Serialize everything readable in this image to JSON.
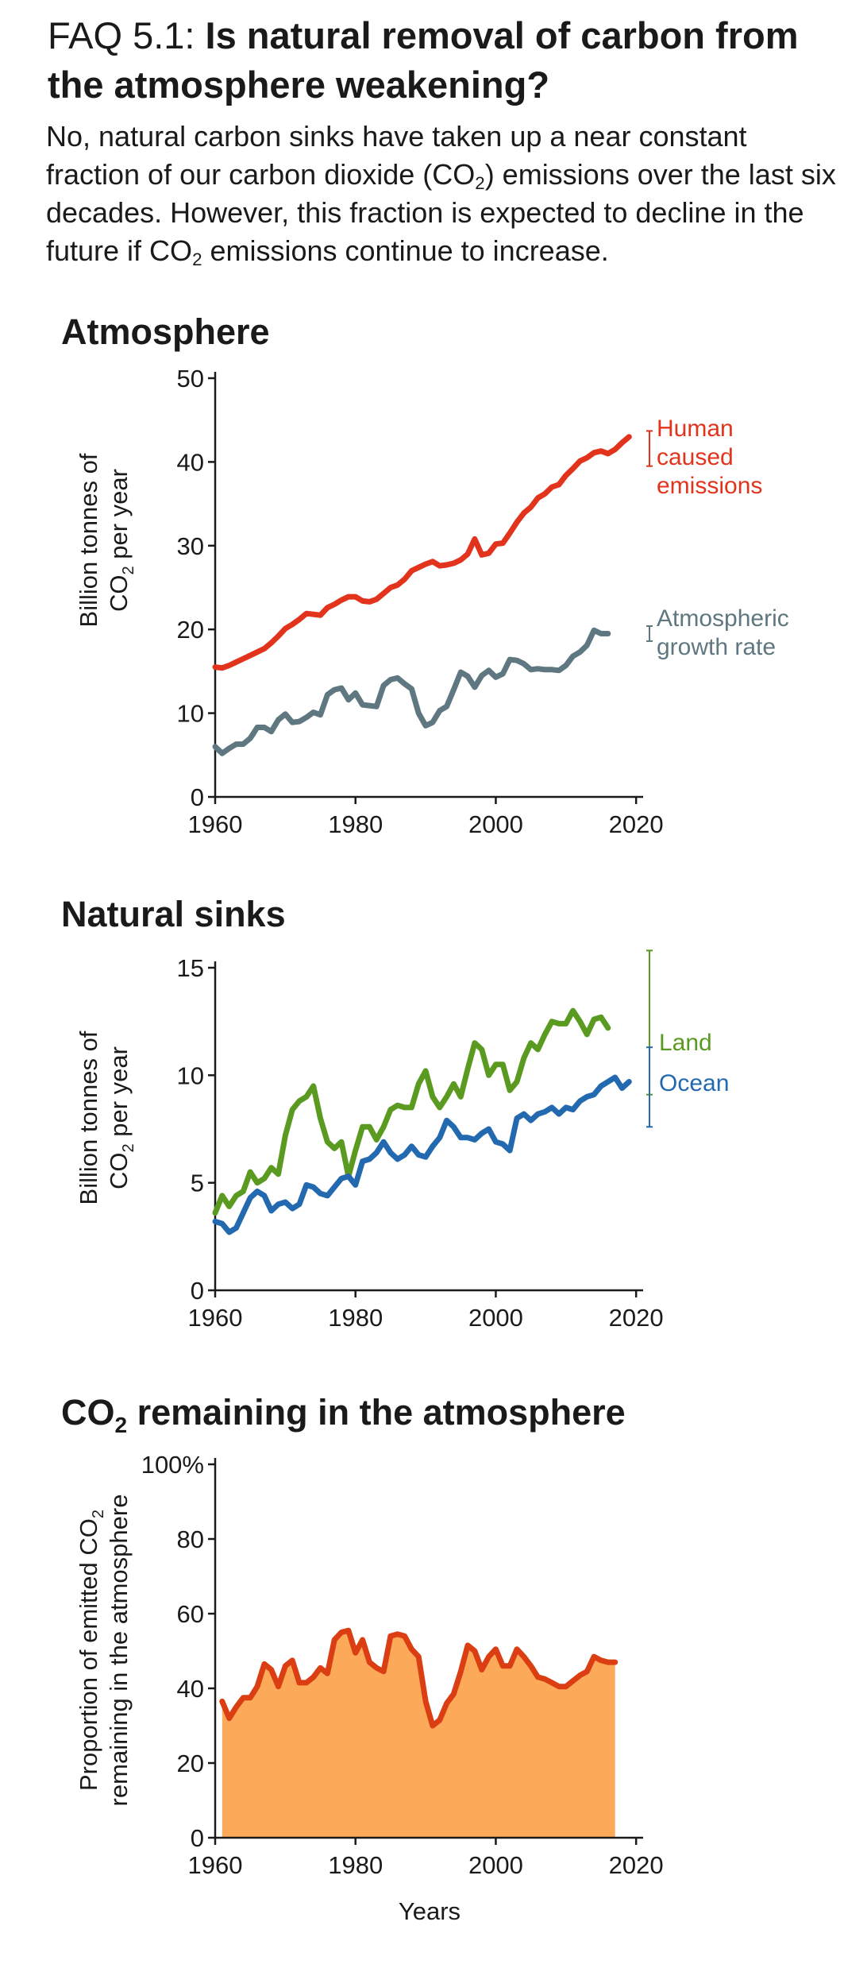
{
  "header": {
    "faq_label": "FAQ 5.1:",
    "question": "Is natural removal of carbon from the atmosphere weakening?",
    "intro": {
      "p1": "No, natural carbon sinks have taken up a near constant fraction of our carbon dioxide (CO",
      "sub1": "2",
      "p2": ") emissions over the last six decades. However, this fraction is expected to decline in the future if CO",
      "sub2": "2",
      "p3": " emissions continue to increase."
    }
  },
  "colors": {
    "human": "#e2341d",
    "atmospheric": "#5f7780",
    "land": "#5b9a21",
    "ocean": "#2369b0",
    "remaining_line": "#da3e12",
    "remaining_fill": "#fcaa59",
    "axis": "#1a1a1a"
  },
  "chart_data": [
    {
      "type": "line",
      "panel_title": "Atmosphere",
      "ylabel_line1": "Billion tonnes of",
      "ylabel_line2_pre": "CO",
      "ylabel_line2_sub": "2",
      "ylabel_line2_post": " per year",
      "xlim": [
        1960,
        2021
      ],
      "ylim": [
        0,
        50
      ],
      "xticks": [
        1960,
        1980,
        2000,
        2020
      ],
      "yticks": [
        0,
        10,
        20,
        30,
        40,
        50
      ],
      "series": [
        {
          "key": "human",
          "name_lines": [
            "Human",
            "caused",
            "emissions"
          ],
          "color": "#e2341d",
          "x": [
            1960,
            1961,
            1962,
            1963,
            1964,
            1965,
            1966,
            1967,
            1968,
            1969,
            1970,
            1971,
            1972,
            1973,
            1974,
            1975,
            1976,
            1977,
            1978,
            1979,
            1980,
            1981,
            1982,
            1983,
            1984,
            1985,
            1986,
            1987,
            1988,
            1989,
            1990,
            1991,
            1992,
            1993,
            1994,
            1995,
            1996,
            1997,
            1998,
            1999,
            2000,
            2001,
            2002,
            2003,
            2004,
            2005,
            2006,
            2007,
            2008,
            2009,
            2010,
            2011,
            2012,
            2013,
            2014,
            2015,
            2016,
            2017,
            2018,
            2019
          ],
          "values": [
            15.5,
            15.4,
            15.7,
            16.1,
            16.5,
            16.9,
            17.3,
            17.7,
            18.4,
            19.2,
            20.1,
            20.6,
            21.2,
            21.9,
            21.8,
            21.7,
            22.6,
            23.0,
            23.5,
            23.9,
            23.9,
            23.4,
            23.3,
            23.6,
            24.3,
            25.0,
            25.3,
            26.0,
            27.0,
            27.4,
            27.8,
            28.1,
            27.6,
            27.7,
            27.9,
            28.3,
            29.0,
            30.8,
            28.9,
            29.1,
            30.2,
            30.3,
            31.5,
            32.8,
            33.9,
            34.6,
            35.7,
            36.2,
            37.0,
            37.3,
            38.4,
            39.2,
            40.1,
            40.5,
            41.1,
            41.3,
            41.0,
            41.5,
            42.3,
            43.0
          ],
          "uncertainty": [
            39.5,
            43.7
          ]
        },
        {
          "key": "atmospheric",
          "name_lines": [
            "Atmospheric",
            "growth rate"
          ],
          "color": "#5f7780",
          "x": [
            1960,
            1961,
            1962,
            1963,
            1964,
            1965,
            1966,
            1967,
            1968,
            1969,
            1970,
            1971,
            1972,
            1973,
            1974,
            1975,
            1976,
            1977,
            1978,
            1979,
            1980,
            1981,
            1982,
            1983,
            1984,
            1985,
            1986,
            1987,
            1988,
            1989,
            1990,
            1991,
            1992,
            1993,
            1994,
            1995,
            1996,
            1997,
            1998,
            1999,
            2000,
            2001,
            2002,
            2003,
            2004,
            2005,
            2006,
            2007,
            2008,
            2009,
            2010,
            2011,
            2012,
            2013,
            2014,
            2015,
            2016
          ],
          "values": [
            6.0,
            5.2,
            5.8,
            6.3,
            6.3,
            7.0,
            8.3,
            8.3,
            7.8,
            9.2,
            9.9,
            8.9,
            9.0,
            9.5,
            10.1,
            9.8,
            12.2,
            12.8,
            13.0,
            11.6,
            12.4,
            11.0,
            10.9,
            10.8,
            13.3,
            14.0,
            14.2,
            13.5,
            12.9,
            10.0,
            8.5,
            8.9,
            10.3,
            10.8,
            12.8,
            14.9,
            14.4,
            13.1,
            14.5,
            15.1,
            14.3,
            14.7,
            16.4,
            16.3,
            15.9,
            15.2,
            15.3,
            15.2,
            15.2,
            15.1,
            15.7,
            16.8,
            17.3,
            18.1,
            19.9,
            19.5,
            19.5
          ],
          "uncertainty": [
            18.6,
            20.4
          ]
        }
      ]
    },
    {
      "type": "line",
      "panel_title": "Natural sinks",
      "ylabel_line1": "Billion tonnes of",
      "ylabel_line2_pre": "CO",
      "ylabel_line2_sub": "2",
      "ylabel_line2_post": " per year",
      "xlim": [
        1960,
        2021
      ],
      "ylim": [
        0,
        15
      ],
      "xticks": [
        1960,
        1980,
        2000,
        2020
      ],
      "yticks": [
        0,
        5,
        10,
        15
      ],
      "series": [
        {
          "key": "land",
          "name": "Land",
          "color": "#5b9a21",
          "x": [
            1960,
            1961,
            1962,
            1963,
            1964,
            1965,
            1966,
            1967,
            1968,
            1969,
            1970,
            1971,
            1972,
            1973,
            1974,
            1975,
            1976,
            1977,
            1978,
            1979,
            1980,
            1981,
            1982,
            1983,
            1984,
            1985,
            1986,
            1987,
            1988,
            1989,
            1990,
            1991,
            1992,
            1993,
            1994,
            1995,
            1996,
            1997,
            1998,
            1999,
            2000,
            2001,
            2002,
            2003,
            2004,
            2005,
            2006,
            2007,
            2008,
            2009,
            2010,
            2011,
            2012,
            2013,
            2014,
            2015,
            2016
          ],
          "values": [
            3.6,
            4.4,
            3.9,
            4.4,
            4.6,
            5.5,
            5.0,
            5.2,
            5.7,
            5.4,
            7.2,
            8.4,
            8.8,
            9.0,
            9.5,
            8.0,
            6.9,
            6.6,
            6.9,
            5.3,
            6.5,
            7.6,
            7.6,
            7.0,
            7.6,
            8.4,
            8.6,
            8.5,
            8.5,
            9.6,
            10.2,
            9.0,
            8.5,
            9.0,
            9.6,
            9.0,
            10.3,
            11.5,
            11.2,
            10.0,
            10.5,
            10.5,
            9.3,
            9.7,
            10.8,
            11.5,
            11.2,
            11.9,
            12.5,
            12.4,
            12.4,
            13.0,
            12.5,
            11.9,
            12.6,
            12.7,
            12.2
          ],
          "uncertainty": [
            9.1,
            15.8
          ]
        },
        {
          "key": "ocean",
          "name": "Ocean",
          "color": "#2369b0",
          "x": [
            1960,
            1961,
            1962,
            1963,
            1964,
            1965,
            1966,
            1967,
            1968,
            1969,
            1970,
            1971,
            1972,
            1973,
            1974,
            1975,
            1976,
            1977,
            1978,
            1979,
            1980,
            1981,
            1982,
            1983,
            1984,
            1985,
            1986,
            1987,
            1988,
            1989,
            1990,
            1991,
            1992,
            1993,
            1994,
            1995,
            1996,
            1997,
            1998,
            1999,
            2000,
            2001,
            2002,
            2003,
            2004,
            2005,
            2006,
            2007,
            2008,
            2009,
            2010,
            2011,
            2012,
            2013,
            2014,
            2015,
            2016,
            2017,
            2018,
            2019
          ],
          "values": [
            3.2,
            3.1,
            2.7,
            2.9,
            3.6,
            4.3,
            4.6,
            4.4,
            3.7,
            4.0,
            4.1,
            3.8,
            4.0,
            4.9,
            4.8,
            4.5,
            4.4,
            4.8,
            5.2,
            5.3,
            4.9,
            6.0,
            6.1,
            6.4,
            6.9,
            6.4,
            6.1,
            6.3,
            6.7,
            6.3,
            6.2,
            6.7,
            7.1,
            7.9,
            7.6,
            7.1,
            7.1,
            7.0,
            7.3,
            7.5,
            6.9,
            6.8,
            6.5,
            8.0,
            8.2,
            7.9,
            8.2,
            8.3,
            8.5,
            8.2,
            8.5,
            8.4,
            8.8,
            9.0,
            9.1,
            9.5,
            9.7,
            9.9,
            9.4,
            9.7
          ],
          "uncertainty": [
            7.6,
            11.3
          ]
        }
      ]
    },
    {
      "type": "area",
      "panel_title_pre": "CO",
      "panel_title_sub": "2",
      "panel_title_post": " remaining in the atmosphere",
      "ylabel_line1_pre": "Proportion of emitted CO",
      "ylabel_line1_sub": "2",
      "ylabel_line2": "remaining in the atmosphere",
      "xlabel": "Years",
      "xlim": [
        1960,
        2021
      ],
      "ylim": [
        0,
        100
      ],
      "xticks": [
        1960,
        1980,
        2000,
        2020
      ],
      "ytick_labels": [
        "0",
        "20",
        "40",
        "60",
        "80",
        "100%"
      ],
      "yticks": [
        0,
        20,
        40,
        60,
        80,
        100
      ],
      "series": [
        {
          "key": "remaining",
          "color": "#da3e12",
          "fill": "#fcaa59",
          "x": [
            1961,
            1962,
            1963,
            1964,
            1965,
            1966,
            1967,
            1968,
            1969,
            1970,
            1971,
            1972,
            1973,
            1974,
            1975,
            1976,
            1977,
            1978,
            1979,
            1980,
            1981,
            1982,
            1983,
            1984,
            1985,
            1986,
            1987,
            1988,
            1989,
            1990,
            1991,
            1992,
            1993,
            1994,
            1995,
            1996,
            1997,
            1998,
            1999,
            2000,
            2001,
            2002,
            2003,
            2004,
            2005,
            2006,
            2007,
            2008,
            2009,
            2010,
            2011,
            2012,
            2013,
            2014,
            2015,
            2016,
            2017
          ],
          "values": [
            36.5,
            32.0,
            35.0,
            37.5,
            37.5,
            40.5,
            46.5,
            45.0,
            40.5,
            46.0,
            47.5,
            41.5,
            41.5,
            43.0,
            45.5,
            44.0,
            53.0,
            55.0,
            55.5,
            49.5,
            53.0,
            47.0,
            45.5,
            44.5,
            54.0,
            54.5,
            54.0,
            50.5,
            48.5,
            36.5,
            30.0,
            31.5,
            36.0,
            38.5,
            44.5,
            51.5,
            50.0,
            45.0,
            48.5,
            50.5,
            46.0,
            46.0,
            50.5,
            48.5,
            46.0,
            43.0,
            42.5,
            41.5,
            40.5,
            40.5,
            42.0,
            43.5,
            44.5,
            48.5,
            47.5,
            47.0,
            47.0
          ]
        }
      ]
    }
  ]
}
